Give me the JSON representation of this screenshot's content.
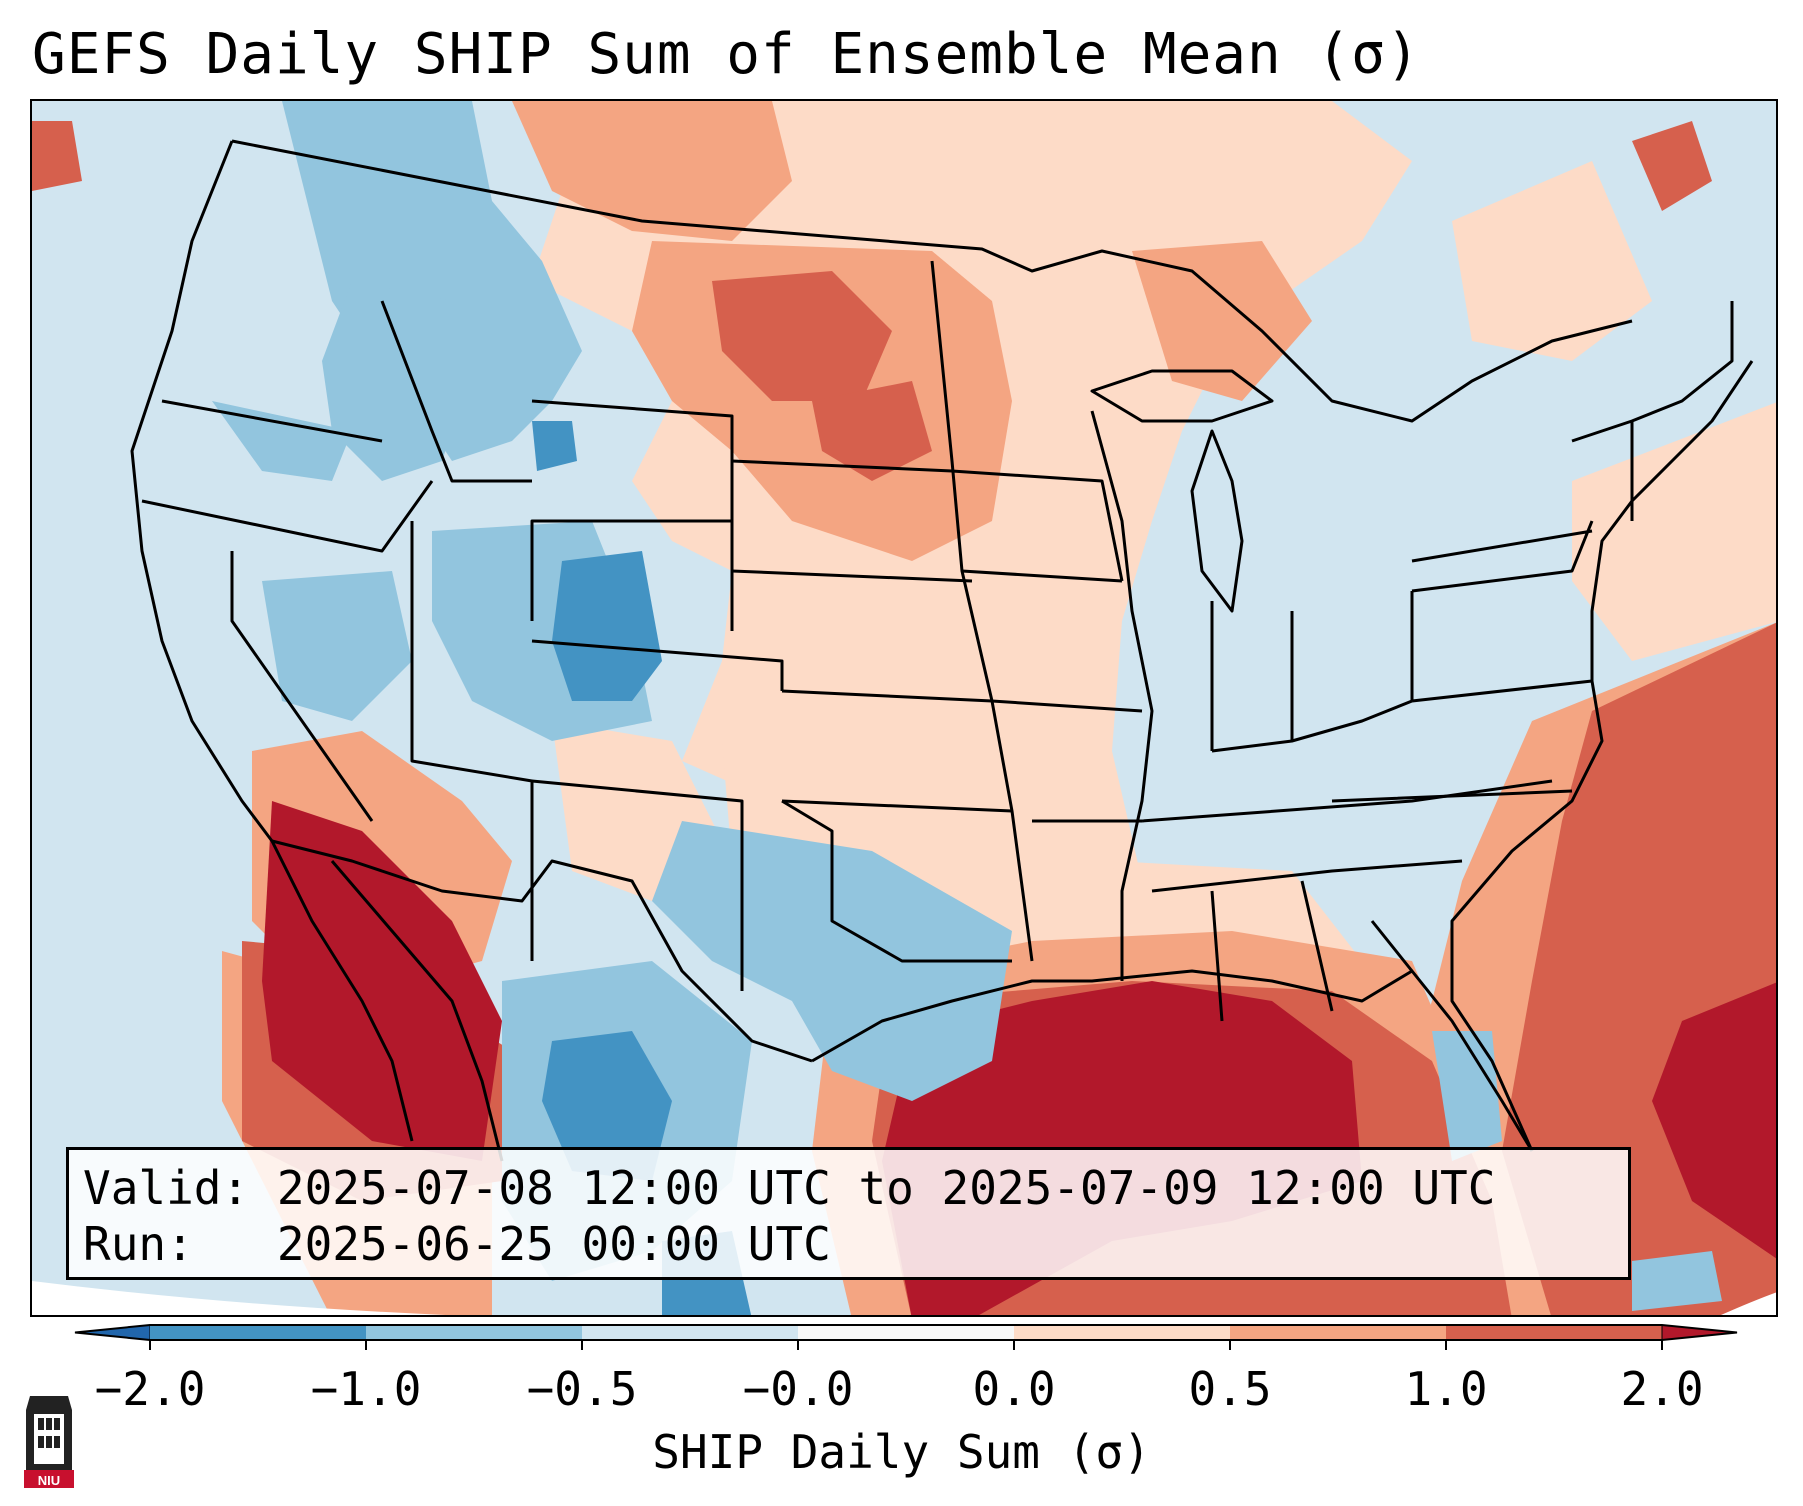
{
  "title": "GEFS Daily SHIP Sum of Ensemble Mean (σ)",
  "map": {
    "projection": "Lambert conformal, CONUS",
    "background_color": "#d1e5f0",
    "boundary_color": "#000000"
  },
  "info": {
    "valid_label": "Valid:",
    "valid_value": "2025-07-08 12:00 UTC to 2025-07-09 12:00 UTC",
    "run_label": "Run:",
    "run_value": "2025-06-25 00:00 UTC"
  },
  "colorbar": {
    "label": "SHIP Daily Sum (σ)",
    "ticks": [
      "−2.0",
      "−1.0",
      "−0.5",
      "−0.0",
      "0.0",
      "0.5",
      "1.0",
      "2.0"
    ],
    "colors": [
      "#2166ac",
      "#4393c3",
      "#92c5de",
      "#d1e5f0",
      "#f7f7f7",
      "#fddbc7",
      "#f4a582",
      "#d6604d",
      "#b2182b"
    ]
  },
  "chart_data": {
    "type": "heatmap",
    "title": "GEFS Daily SHIP Sum of Ensemble Mean (σ)",
    "colorbar_label": "SHIP Daily Sum (σ)",
    "levels": [
      -2.0,
      -1.0,
      -0.5,
      -0.0,
      0.0,
      0.5,
      1.0,
      2.0
    ],
    "extend": "both",
    "valid": "2025-07-08 12:00 UTC to 2025-07-09 12:00 UTC",
    "run": "2025-06-25 00:00 UTC"
  },
  "logo": {
    "name": "NIU",
    "text": "NIU"
  }
}
